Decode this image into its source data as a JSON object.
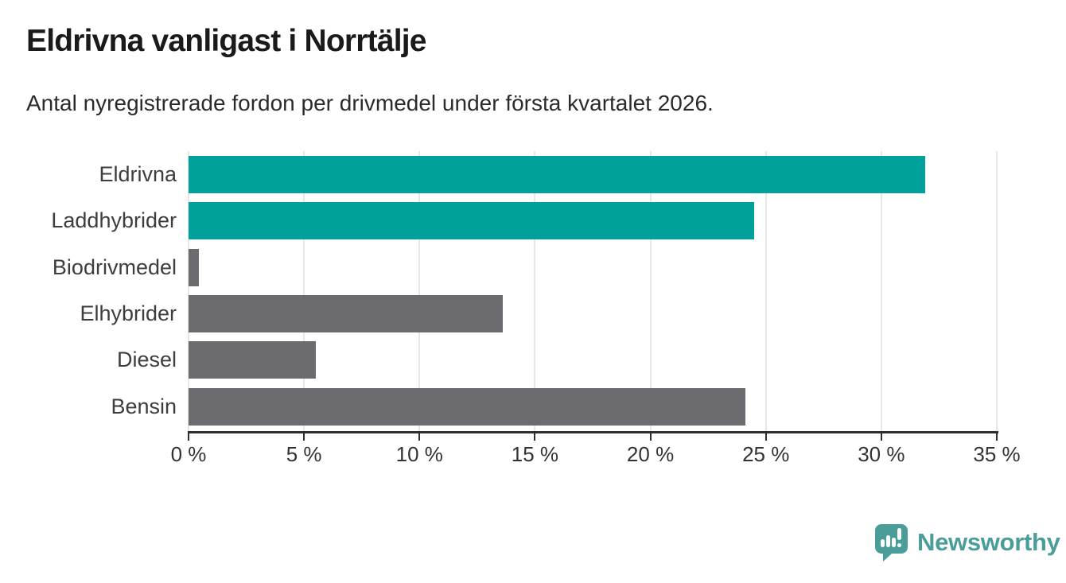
{
  "header": {
    "title": "Eldrivna vanligast i Norrtälje",
    "subtitle": "Antal nyregistrerade fordon per drivmedel under första kvartalet 2026."
  },
  "chart_data": {
    "type": "bar",
    "orientation": "horizontal",
    "title": "Eldrivna vanligast i Norrtälje",
    "subtitle": "Antal nyregistrerade fordon per drivmedel under första kvartalet 2026.",
    "categories": [
      "Eldrivna",
      "Laddhybrider",
      "Biodrivmedel",
      "Elhybrider",
      "Diesel",
      "Bensin"
    ],
    "values": [
      31.9,
      24.5,
      0.45,
      13.6,
      5.5,
      24.1
    ],
    "unit": "%",
    "bar_colors": [
      "#00a09b",
      "#00a09b",
      "#6b6b70",
      "#6b6b70",
      "#6b6b70",
      "#6b6b70"
    ],
    "highlight_color": "#00a09b",
    "base_color": "#6b6b70",
    "xlim": [
      0,
      35
    ],
    "x_tick_values": [
      0,
      5,
      10,
      15,
      20,
      25,
      30,
      35
    ],
    "x_tick_labels": [
      "0 %",
      "5 %",
      "10 %",
      "15 %",
      "20 %",
      "25 %",
      "30 %",
      "35 %"
    ],
    "grid": true,
    "gridline_color": "#e7e7e7",
    "axis_color": "#2e2e2e",
    "legend": "none"
  },
  "footer": {
    "brand": "Newsworthy",
    "brand_color": "#4a9d98",
    "brand_icon": "newsworthy-speech-bubble-chart-icon"
  }
}
